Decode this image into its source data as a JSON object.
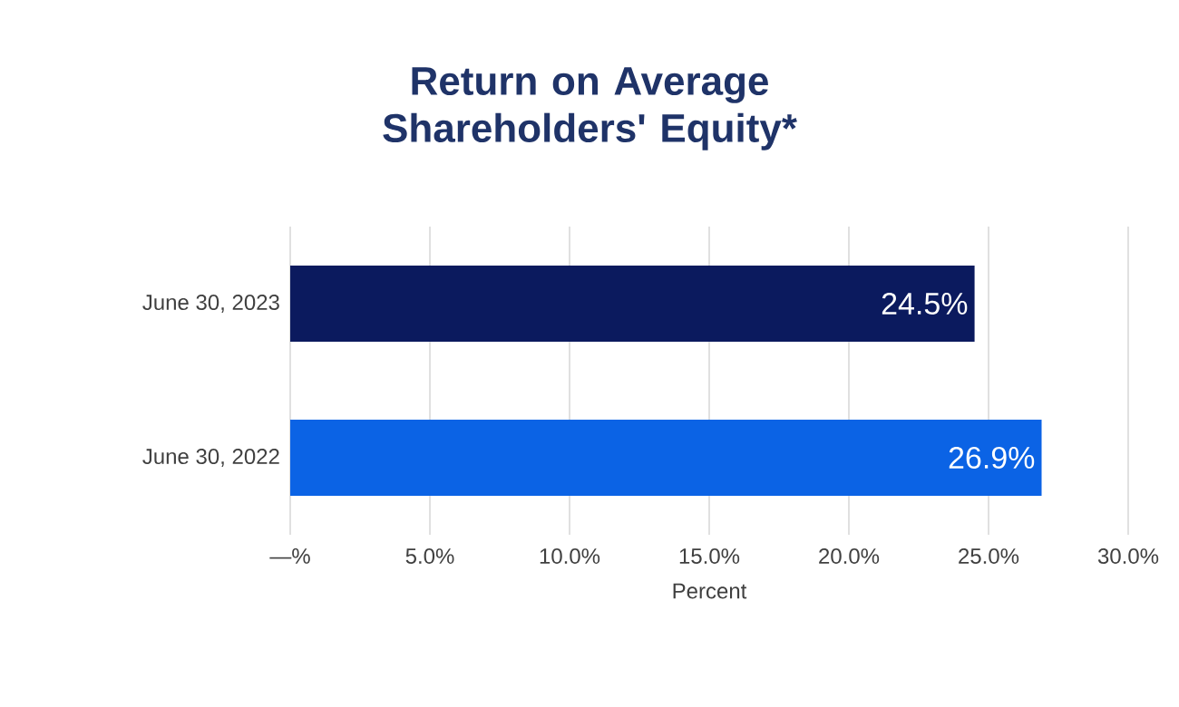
{
  "chart_data": {
    "type": "bar",
    "orientation": "horizontal",
    "title": "Return on Average Shareholders' Equity*",
    "xlabel": "Percent",
    "categories": [
      "June 30, 2023",
      "June 30, 2022"
    ],
    "values": [
      24.5,
      26.9
    ],
    "colors": [
      "#0b1a5e",
      "#0b63e5"
    ],
    "value_labels": [
      "24.5%",
      "26.9%"
    ],
    "xlim": [
      0,
      30
    ],
    "xticks": [
      {
        "value": 0,
        "label": "—%"
      },
      {
        "value": 5,
        "label": "5.0%"
      },
      {
        "value": 10,
        "label": "10.0%"
      },
      {
        "value": 15,
        "label": "15.0%"
      },
      {
        "value": 20,
        "label": "20.0%"
      },
      {
        "value": 25,
        "label": "25.0%"
      },
      {
        "value": 30,
        "label": "30.0%"
      }
    ],
    "grid": "x"
  }
}
